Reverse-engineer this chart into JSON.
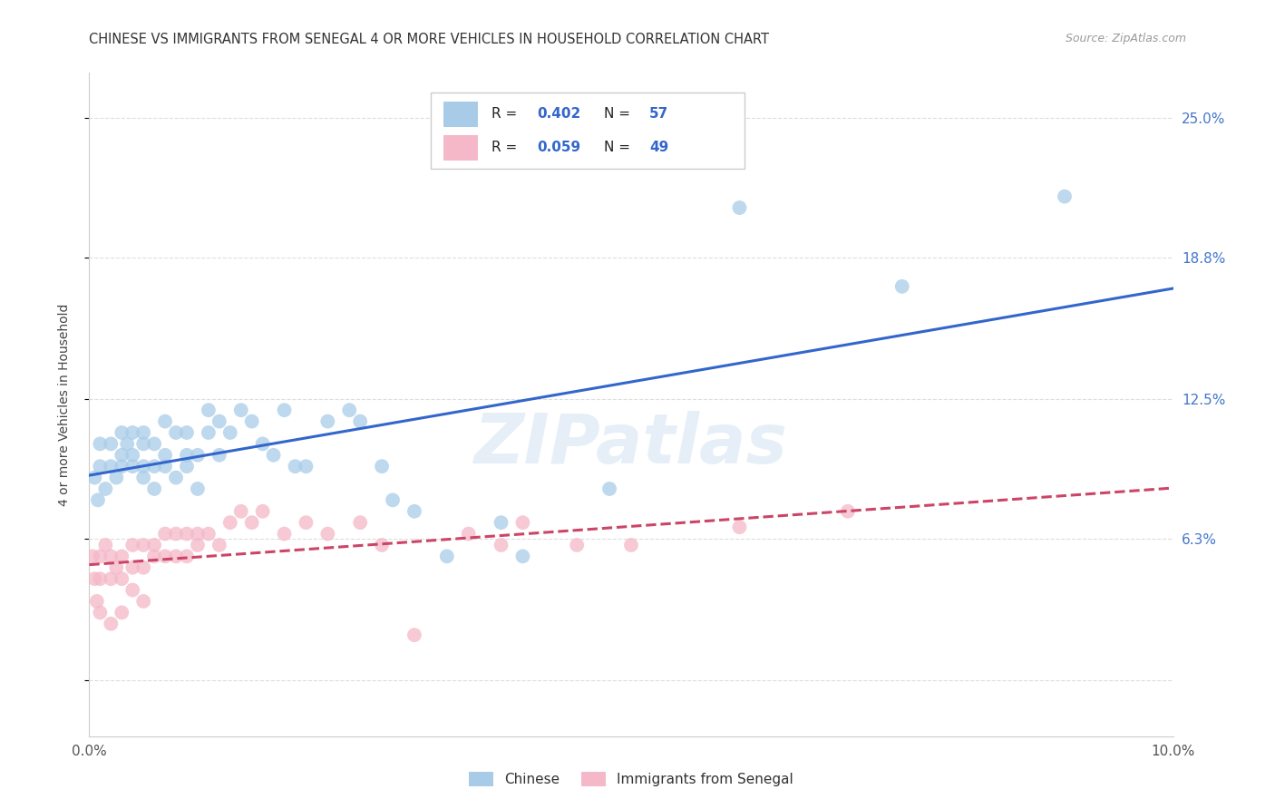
{
  "title": "CHINESE VS IMMIGRANTS FROM SENEGAL 4 OR MORE VEHICLES IN HOUSEHOLD CORRELATION CHART",
  "source": "Source: ZipAtlas.com",
  "ylabel": "4 or more Vehicles in Household",
  "xlim": [
    0.0,
    0.1
  ],
  "ylim": [
    -0.025,
    0.27
  ],
  "ytick_vals": [
    0.0,
    0.063,
    0.125,
    0.188,
    0.25
  ],
  "ytick_labels": [
    "",
    "6.3%",
    "12.5%",
    "18.8%",
    "25.0%"
  ],
  "xtick_vals": [
    0.0,
    0.02,
    0.04,
    0.06,
    0.08,
    0.1
  ],
  "xtick_labels": [
    "0.0%",
    "",
    "",
    "",
    "",
    "10.0%"
  ],
  "chinese_color": "#a8cce8",
  "senegal_color": "#f4b8c8",
  "chinese_line_color": "#3366cc",
  "senegal_line_color": "#cc4466",
  "watermark": "ZIPatlas",
  "background_color": "#ffffff",
  "grid_color": "#dddddd",
  "chinese_x": [
    0.0005,
    0.0008,
    0.001,
    0.001,
    0.0015,
    0.002,
    0.002,
    0.0025,
    0.003,
    0.003,
    0.003,
    0.0035,
    0.004,
    0.004,
    0.004,
    0.005,
    0.005,
    0.005,
    0.005,
    0.006,
    0.006,
    0.006,
    0.007,
    0.007,
    0.007,
    0.008,
    0.008,
    0.009,
    0.009,
    0.009,
    0.01,
    0.01,
    0.011,
    0.011,
    0.012,
    0.012,
    0.013,
    0.014,
    0.015,
    0.016,
    0.017,
    0.018,
    0.019,
    0.02,
    0.022,
    0.024,
    0.025,
    0.027,
    0.028,
    0.03,
    0.033,
    0.038,
    0.04,
    0.048,
    0.06,
    0.075,
    0.09
  ],
  "chinese_y": [
    0.09,
    0.08,
    0.095,
    0.105,
    0.085,
    0.095,
    0.105,
    0.09,
    0.095,
    0.1,
    0.11,
    0.105,
    0.095,
    0.1,
    0.11,
    0.09,
    0.095,
    0.105,
    0.11,
    0.085,
    0.095,
    0.105,
    0.095,
    0.1,
    0.115,
    0.09,
    0.11,
    0.095,
    0.1,
    0.11,
    0.085,
    0.1,
    0.11,
    0.12,
    0.115,
    0.1,
    0.11,
    0.12,
    0.115,
    0.105,
    0.1,
    0.12,
    0.095,
    0.095,
    0.115,
    0.12,
    0.115,
    0.095,
    0.08,
    0.075,
    0.055,
    0.07,
    0.055,
    0.085,
    0.21,
    0.175,
    0.215
  ],
  "senegal_x": [
    0.0003,
    0.0005,
    0.0007,
    0.001,
    0.001,
    0.001,
    0.0015,
    0.002,
    0.002,
    0.002,
    0.0025,
    0.003,
    0.003,
    0.003,
    0.004,
    0.004,
    0.004,
    0.005,
    0.005,
    0.005,
    0.006,
    0.006,
    0.007,
    0.007,
    0.008,
    0.008,
    0.009,
    0.009,
    0.01,
    0.01,
    0.011,
    0.012,
    0.013,
    0.014,
    0.015,
    0.016,
    0.018,
    0.02,
    0.022,
    0.025,
    0.027,
    0.03,
    0.035,
    0.038,
    0.04,
    0.045,
    0.05,
    0.06,
    0.07
  ],
  "senegal_y": [
    0.055,
    0.045,
    0.035,
    0.055,
    0.045,
    0.03,
    0.06,
    0.055,
    0.045,
    0.025,
    0.05,
    0.055,
    0.045,
    0.03,
    0.06,
    0.05,
    0.04,
    0.06,
    0.05,
    0.035,
    0.06,
    0.055,
    0.065,
    0.055,
    0.065,
    0.055,
    0.065,
    0.055,
    0.065,
    0.06,
    0.065,
    0.06,
    0.07,
    0.075,
    0.07,
    0.075,
    0.065,
    0.07,
    0.065,
    0.07,
    0.06,
    0.02,
    0.065,
    0.06,
    0.07,
    0.06,
    0.06,
    0.068,
    0.075
  ],
  "legend_r1": "R = 0.402",
  "legend_n1": "N = 57",
  "legend_r2": "R = 0.059",
  "legend_n2": "N = 49",
  "legend_color1": "#a8cce8",
  "legend_color2": "#f4b8c8",
  "legend_num_color": "#3366cc",
  "legend_senegal_num_color": "#3366cc"
}
